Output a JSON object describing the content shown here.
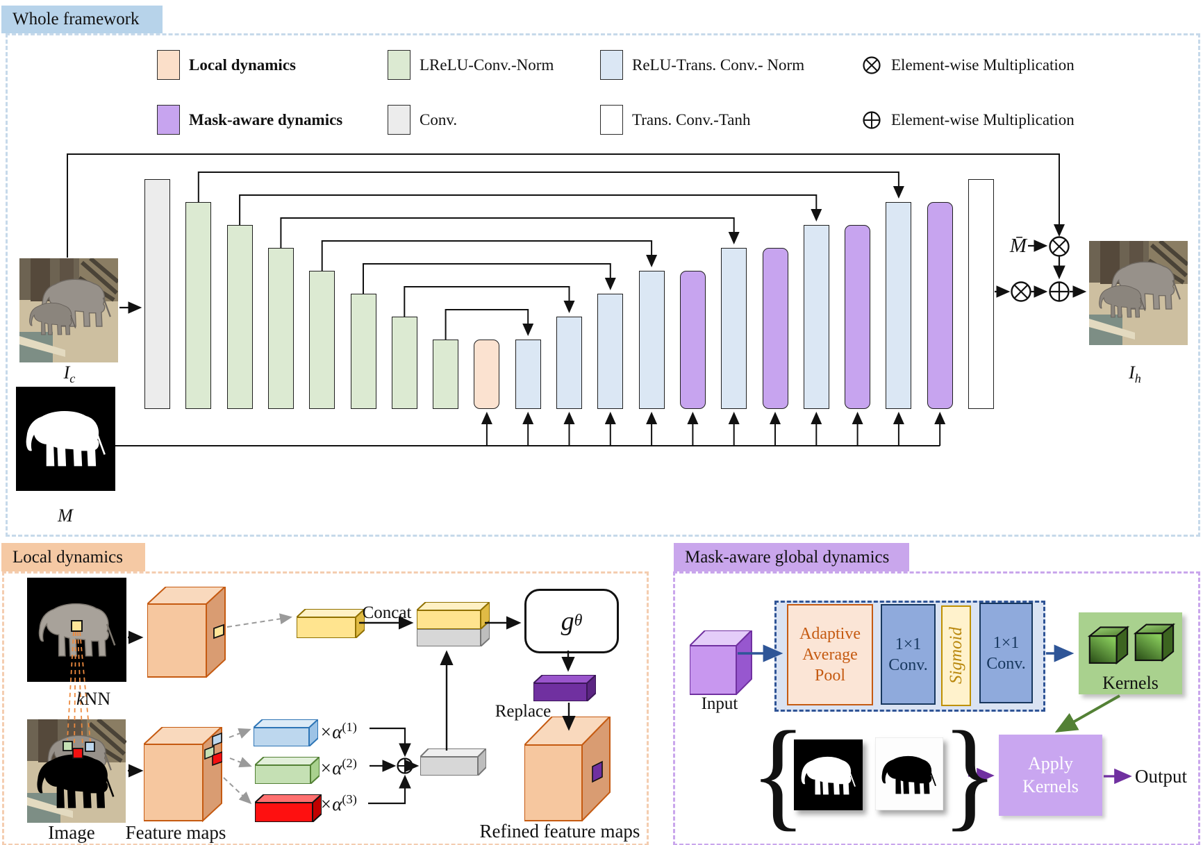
{
  "whole_framework": {
    "title": "Whole framework",
    "legend": [
      {
        "name": "local-dynamics",
        "label": "Local dynamics",
        "color": "#fbdfc9",
        "bold": true
      },
      {
        "name": "mask-aware-dynamics",
        "label": "Mask-aware dynamics",
        "color": "#c7a4ef",
        "bold": true
      },
      {
        "name": "lrelu-conv-norm",
        "label": "LReLU-Conv.-Norm",
        "color": "#dcead2"
      },
      {
        "name": "conv",
        "label": "Conv.",
        "color": "#ececec"
      },
      {
        "name": "relu-trans-conv-norm",
        "label": "ReLU-Trans. Conv.- Norm",
        "color": "#dbe7f4"
      },
      {
        "name": "trans-conv-tanh",
        "label": "Trans. Conv.-Tanh",
        "color": "#ffffff"
      },
      {
        "name": "element-wise-mult",
        "label": "Element-wise Multiplication",
        "symbol": "otimes"
      },
      {
        "name": "element-wise-mult-2",
        "label": "Element-wise Multiplication",
        "symbol": "oplus"
      }
    ],
    "input_image_label": {
      "base": "I",
      "sub": "c"
    },
    "mask_label": "M",
    "mask_bar_label": "M̄",
    "output_image_label": {
      "base": "I",
      "sub": "h"
    },
    "layers": [
      {
        "type": "conv",
        "level": 0
      },
      {
        "type": "lrelu",
        "level": 1
      },
      {
        "type": "lrelu",
        "level": 2
      },
      {
        "type": "lrelu",
        "level": 3
      },
      {
        "type": "lrelu",
        "level": 4
      },
      {
        "type": "lrelu",
        "level": 5
      },
      {
        "type": "lrelu",
        "level": 6
      },
      {
        "type": "lrelu",
        "level": 7
      },
      {
        "type": "local",
        "level": 7
      },
      {
        "type": "relu",
        "level": 7
      },
      {
        "type": "relu",
        "level": 6
      },
      {
        "type": "relu",
        "level": 5
      },
      {
        "type": "relu",
        "level": 4
      },
      {
        "type": "mask",
        "level": 4
      },
      {
        "type": "relu",
        "level": 3
      },
      {
        "type": "mask",
        "level": 3
      },
      {
        "type": "relu",
        "level": 2
      },
      {
        "type": "mask",
        "level": 2
      },
      {
        "type": "relu",
        "level": 1
      },
      {
        "type": "mask",
        "level": 1
      },
      {
        "type": "tanh",
        "level": 0
      }
    ]
  },
  "local_dynamics": {
    "title": "Local dynamics",
    "knn": {
      "k": "k",
      "rest": "NN"
    },
    "image_label": "Image",
    "feature_maps_label": "Feature maps",
    "concat_label": "Concat",
    "g_function": {
      "base": "g",
      "sub": "θ"
    },
    "replace_label": "Replace",
    "refined_label": "Refined feature maps",
    "alphas": [
      {
        "base": "×α",
        "sup": "(1)"
      },
      {
        "base": "×α",
        "sup": "(2)"
      },
      {
        "base": "×α",
        "sup": "(3)"
      }
    ]
  },
  "mask_aware": {
    "title": "Mask-aware global dynamics",
    "input_label": "Input",
    "pool_block": [
      "Adaptive",
      "Average",
      "Pool"
    ],
    "conv_block_1": [
      "1×1",
      "Conv."
    ],
    "sigmoid_label": "Sigmoid",
    "conv_block_2": [
      "1×1",
      "Conv."
    ],
    "kernels_label": "Kernels",
    "apply_block": [
      "Apply",
      "Kernels"
    ],
    "output_label": "Output"
  },
  "colors": {
    "framework_tab": "#b7d3ea",
    "framework_border": "#c6d9ea",
    "local_tab": "#f5c9a4",
    "local_border": "#f4cdb0",
    "mask_tab": "#c9a6ec",
    "mask_border": "#c9a6ec",
    "arrow_blue": "#2e5597",
    "arrow_green": "#538135",
    "arrow_purple": "#7030a0"
  }
}
